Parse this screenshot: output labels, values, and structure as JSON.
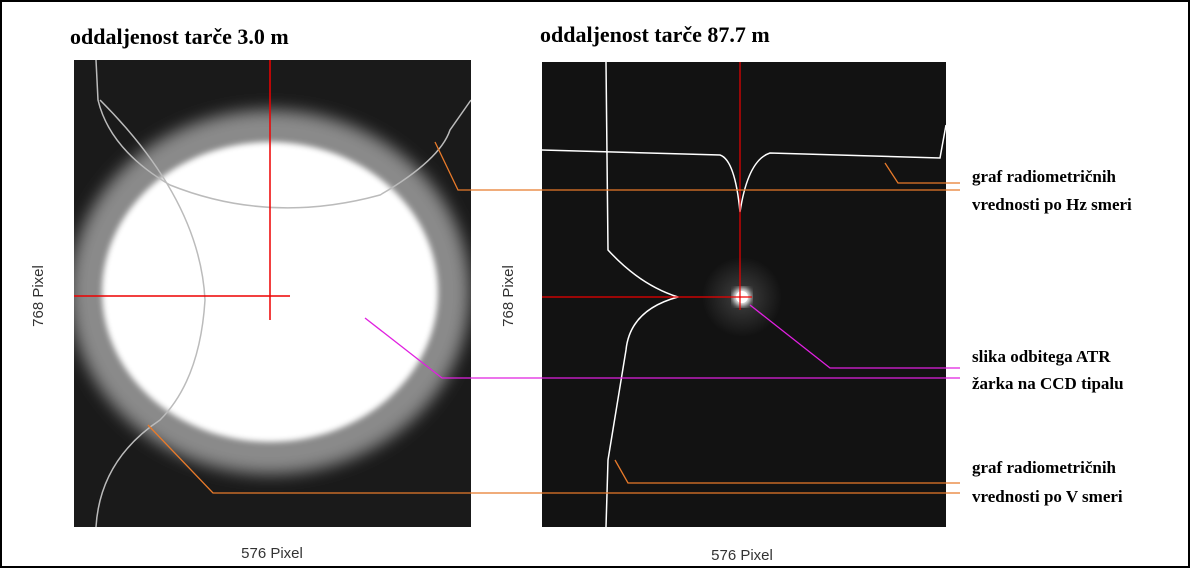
{
  "panels": [
    {
      "title": "oddaljenost tarče 3.0 m",
      "y_label": "768 Pixel",
      "x_label": "576 Pixel"
    },
    {
      "title": "oddaljenost tarče 87.7 m",
      "y_label": "768 Pixel",
      "x_label": "576 Pixel"
    }
  ],
  "annotations": [
    {
      "lines": [
        "graf radiometričnih",
        "vrednosti po Hz smeri"
      ]
    },
    {
      "lines": [
        "slika odbitega ATR",
        "žarka na CCD tipalu"
      ]
    },
    {
      "lines": [
        "graf radiometričnih",
        "vrednosti po V smeri"
      ]
    }
  ]
}
